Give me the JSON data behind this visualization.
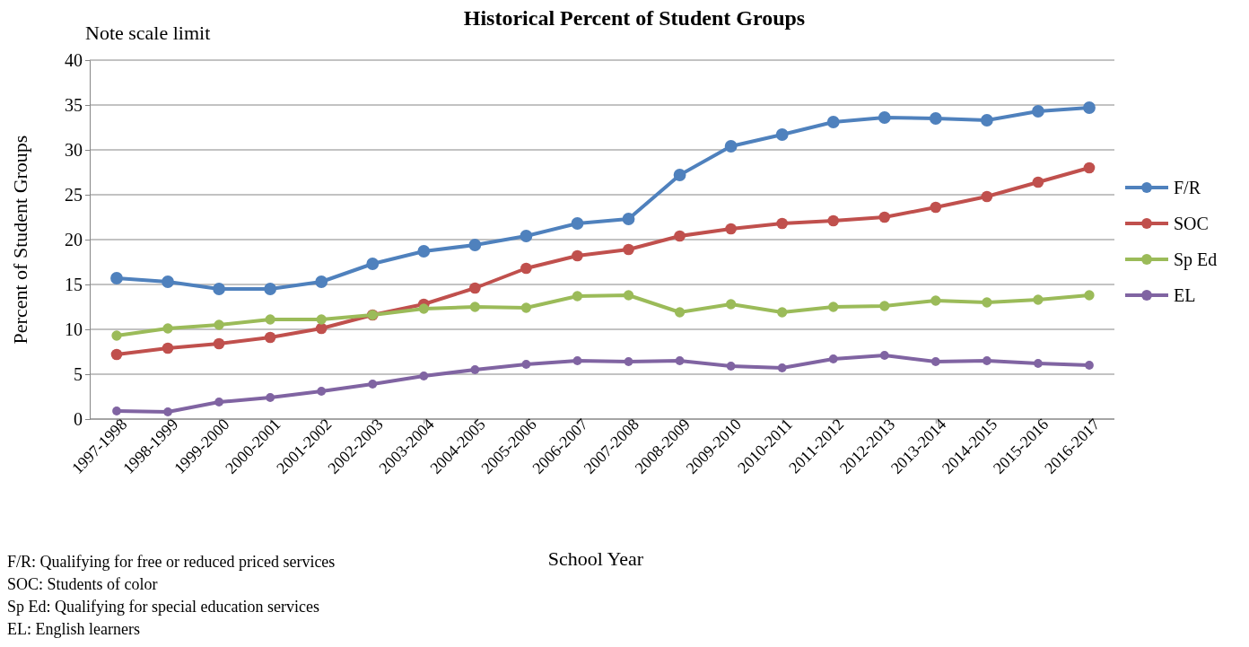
{
  "chart_data": {
    "type": "line",
    "title": "Historical Percent of Student Groups",
    "xlabel": "School Year",
    "ylabel": "Percent of Student Groups",
    "categories": [
      "1997-1998",
      "1998-1999",
      "1999-2000",
      "2000-2001",
      "2001-2002",
      "2002-2003",
      "2003-2004",
      "2004-2005",
      "2005-2006",
      "2006-2007",
      "2007-2008",
      "2008-2009",
      "2009-2010",
      "2010-2011",
      "2011-2012",
      "2012-2013",
      "2013-2014",
      "2014-2015",
      "2015-2016",
      "2016-2017"
    ],
    "series": [
      {
        "name": "F/R",
        "color": "#4f81bd",
        "values": [
          15.7,
          15.3,
          14.5,
          14.5,
          15.3,
          17.3,
          18.7,
          19.4,
          20.4,
          21.8,
          22.3,
          27.2,
          30.4,
          31.7,
          33.1,
          33.6,
          33.5,
          33.3,
          34.3,
          34.7
        ]
      },
      {
        "name": "SOC",
        "color": "#c0504d",
        "values": [
          7.2,
          7.9,
          8.4,
          9.1,
          10.1,
          11.6,
          12.8,
          14.6,
          16.8,
          18.2,
          18.9,
          20.4,
          21.2,
          21.8,
          22.1,
          22.5,
          23.6,
          24.8,
          26.4,
          28.0
        ]
      },
      {
        "name": "Sp Ed",
        "color": "#9bbb59",
        "values": [
          9.3,
          10.1,
          10.5,
          11.1,
          11.1,
          11.6,
          12.3,
          12.5,
          12.4,
          13.7,
          13.8,
          11.9,
          12.8,
          11.9,
          12.5,
          12.6,
          13.2,
          13.0,
          13.3,
          13.8
        ]
      },
      {
        "name": "EL",
        "color": "#8064a2",
        "values": [
          0.9,
          0.8,
          1.9,
          2.4,
          3.1,
          3.9,
          4.8,
          5.5,
          6.1,
          6.5,
          6.4,
          6.5,
          5.9,
          5.7,
          6.7,
          7.1,
          6.4,
          6.5,
          6.2,
          6.0
        ]
      }
    ],
    "ylim": [
      0,
      40
    ],
    "yticks": [
      0,
      5,
      10,
      15,
      20,
      25,
      30,
      35,
      40
    ],
    "grid": "y",
    "legend": "right",
    "marker": "circle",
    "line_style": "solid",
    "annotations": [
      "Note scale limit",
      "F/R:  Qualifying for free or reduced priced services",
      "SOC:  Students of color",
      "Sp Ed:  Qualifying for special education services",
      "EL:  English learners"
    ]
  }
}
